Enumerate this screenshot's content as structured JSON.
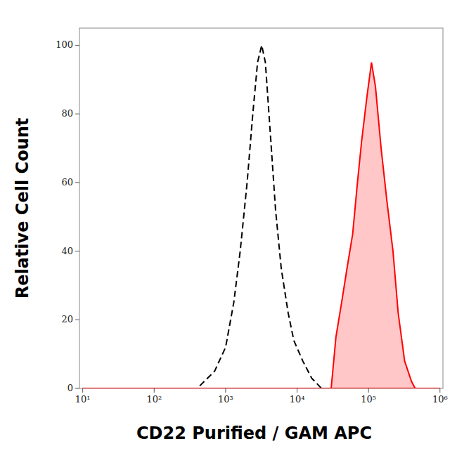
{
  "chart_data": {
    "type": "line",
    "x_label": "CD22 Purified / GAM APC",
    "y_label": "Relative Cell Count",
    "log": "x",
    "xlim": [
      9,
      1100000
    ],
    "xticks": [
      {
        "value": 10,
        "label": "10¹"
      },
      {
        "value": 100,
        "label": "10²"
      },
      {
        "value": 1000,
        "label": "10³"
      },
      {
        "value": 10000,
        "label": "10⁴"
      },
      {
        "value": 100000,
        "label": "10⁵"
      },
      {
        "value": 1000000,
        "label": "10⁶"
      }
    ],
    "ylim": [
      0,
      105
    ],
    "yticks": [
      0,
      20,
      40,
      60,
      80,
      100
    ],
    "series": [
      {
        "type": "line",
        "color": "#000000",
        "line_style": "dashed",
        "x": [
          10,
          400,
          500,
          700,
          1000,
          1300,
          1600,
          2000,
          2400,
          2800,
          3200,
          3600,
          4200,
          5000,
          6000,
          7500,
          9000,
          12000,
          16000,
          22000,
          1000000
        ],
        "values": [
          0,
          0,
          2,
          5,
          12,
          25,
          40,
          60,
          80,
          95,
          100,
          95,
          75,
          52,
          35,
          22,
          14,
          8,
          3,
          0,
          0
        ]
      },
      {
        "type": "area",
        "color": "#ff0000",
        "line_style": "solid",
        "x": [
          10,
          30000,
          35000,
          42000,
          50000,
          60000,
          70000,
          80000,
          95000,
          110000,
          125000,
          150000,
          180000,
          220000,
          260000,
          320000,
          400000,
          450000,
          1000000
        ],
        "values": [
          0,
          0,
          15,
          25,
          35,
          45,
          60,
          72,
          85,
          95,
          88,
          70,
          55,
          40,
          22,
          8,
          2,
          0,
          0
        ]
      }
    ]
  }
}
